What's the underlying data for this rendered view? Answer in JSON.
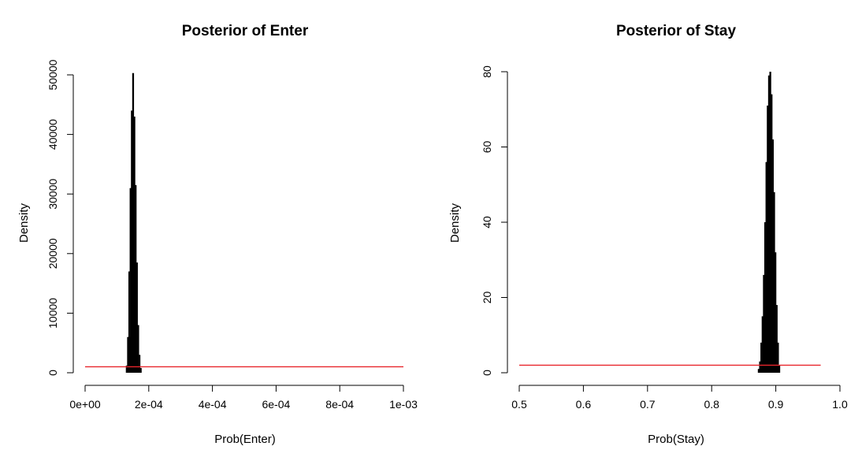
{
  "chart_data": [
    {
      "type": "bar",
      "title": "Posterior of Enter",
      "xlabel": "Prob(Enter)",
      "ylabel": "Density",
      "xlim": [
        0,
        0.001
      ],
      "ylim": [
        0,
        50000
      ],
      "x_ticks": [
        0,
        0.0002,
        0.0004,
        0.0006,
        0.0008,
        0.001
      ],
      "x_tick_labels": [
        "0e+00",
        "2e-04",
        "4e-04",
        "6e-04",
        "8e-04",
        "1e-03"
      ],
      "y_ticks": [
        0,
        10000,
        20000,
        30000,
        40000,
        50000
      ],
      "y_tick_labels": [
        "0",
        "10000",
        "20000",
        "30000",
        "40000",
        "50000"
      ],
      "histogram": {
        "x": [
          0.000128,
          0.000132,
          0.000136,
          0.00014,
          0.000144,
          0.000148,
          0.000152,
          0.000156,
          0.00016,
          0.000164,
          0.000168,
          0.000172
        ],
        "density": [
          1200,
          6000,
          17000,
          31000,
          44000,
          50300,
          43000,
          31500,
          18500,
          8000,
          3000,
          800
        ]
      },
      "prior_line": {
        "y": 1000,
        "x_range": [
          0,
          0.001
        ],
        "color": "#e8262c"
      }
    },
    {
      "type": "bar",
      "title": "Posterior of Stay",
      "xlabel": "Prob(Stay)",
      "ylabel": "Density",
      "xlim": [
        0.5,
        1.0
      ],
      "ylim": [
        0,
        80
      ],
      "x_ticks": [
        0.5,
        0.6,
        0.7,
        0.8,
        0.9,
        1.0
      ],
      "x_tick_labels": [
        "0.5",
        "0.6",
        "0.7",
        "0.8",
        "0.9",
        "1.0"
      ],
      "y_ticks": [
        0,
        20,
        40,
        60,
        80
      ],
      "y_tick_labels": [
        "0",
        "20",
        "40",
        "60",
        "80"
      ],
      "histogram": {
        "x": [
          0.872,
          0.874,
          0.876,
          0.878,
          0.88,
          0.882,
          0.884,
          0.886,
          0.888,
          0.89,
          0.892,
          0.894,
          0.896,
          0.898,
          0.9,
          0.902,
          0.904
        ],
        "density": [
          1,
          3,
          8,
          15,
          26,
          40,
          56,
          71,
          79,
          80,
          74,
          62,
          48,
          32,
          18,
          8,
          2
        ]
      },
      "prior_line": {
        "y": 2,
        "x_range": [
          0.5,
          0.97
        ],
        "color": "#e8262c"
      }
    }
  ]
}
